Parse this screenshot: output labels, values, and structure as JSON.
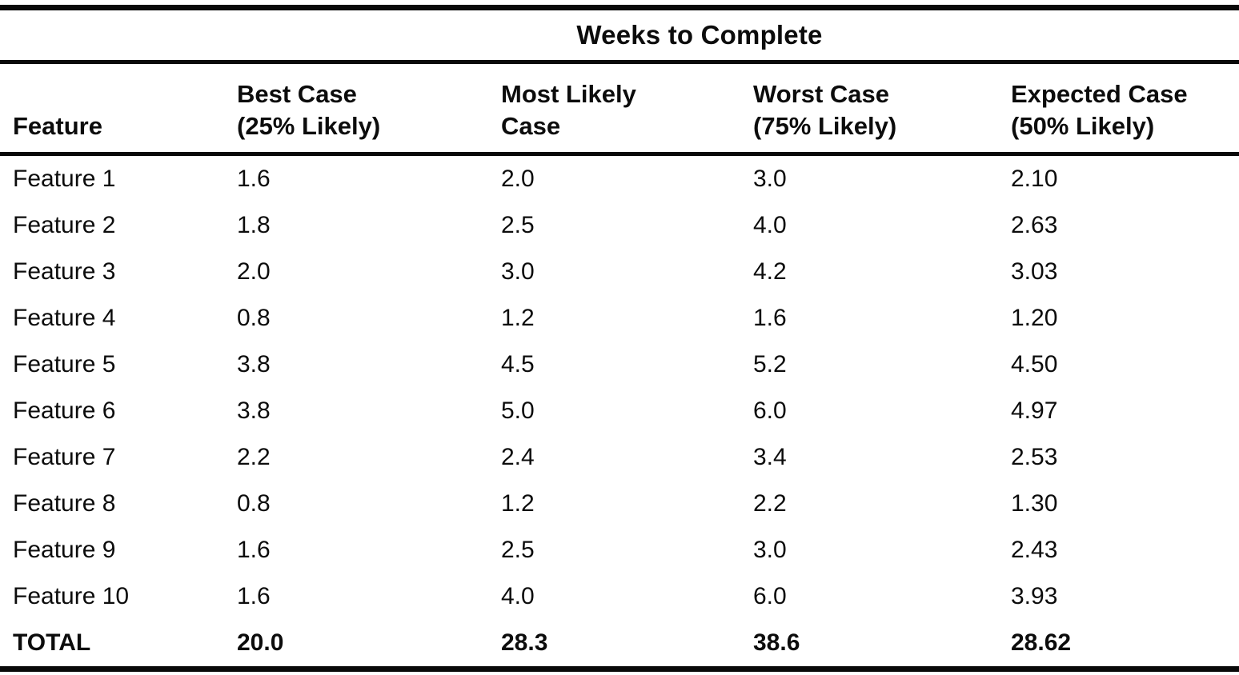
{
  "table": {
    "title": "Weeks to Complete",
    "columns": [
      {
        "line1": "Feature",
        "line2": ""
      },
      {
        "line1": "Best Case",
        "line2": "(25% Likely)"
      },
      {
        "line1": "Most Likely",
        "line2": "Case"
      },
      {
        "line1": "Worst Case",
        "line2": "(75% Likely)"
      },
      {
        "line1": "Expected Case",
        "line2": "(50% Likely)"
      }
    ],
    "rows": [
      {
        "feature": "Feature 1",
        "best": "1.6",
        "likely": "2.0",
        "worst": "3.0",
        "expected": "2.10"
      },
      {
        "feature": "Feature 2",
        "best": "1.8",
        "likely": "2.5",
        "worst": "4.0",
        "expected": "2.63"
      },
      {
        "feature": "Feature 3",
        "best": "2.0",
        "likely": "3.0",
        "worst": "4.2",
        "expected": "3.03"
      },
      {
        "feature": "Feature 4",
        "best": "0.8",
        "likely": "1.2",
        "worst": "1.6",
        "expected": "1.20"
      },
      {
        "feature": "Feature 5",
        "best": "3.8",
        "likely": "4.5",
        "worst": "5.2",
        "expected": "4.50"
      },
      {
        "feature": "Feature 6",
        "best": "3.8",
        "likely": "5.0",
        "worst": "6.0",
        "expected": "4.97"
      },
      {
        "feature": "Feature 7",
        "best": "2.2",
        "likely": "2.4",
        "worst": "3.4",
        "expected": "2.53"
      },
      {
        "feature": "Feature 8",
        "best": "0.8",
        "likely": "1.2",
        "worst": "2.2",
        "expected": "1.30"
      },
      {
        "feature": "Feature 9",
        "best": "1.6",
        "likely": "2.5",
        "worst": "3.0",
        "expected": "2.43"
      },
      {
        "feature": "Feature 10",
        "best": "1.6",
        "likely": "4.0",
        "worst": "6.0",
        "expected": "3.93"
      }
    ],
    "total": {
      "feature": "TOTAL",
      "best": "20.0",
      "likely": "28.3",
      "worst": "38.6",
      "expected": "28.62"
    }
  },
  "colors": {
    "ink": "#0c0c0c",
    "paper": "#ffffff"
  }
}
